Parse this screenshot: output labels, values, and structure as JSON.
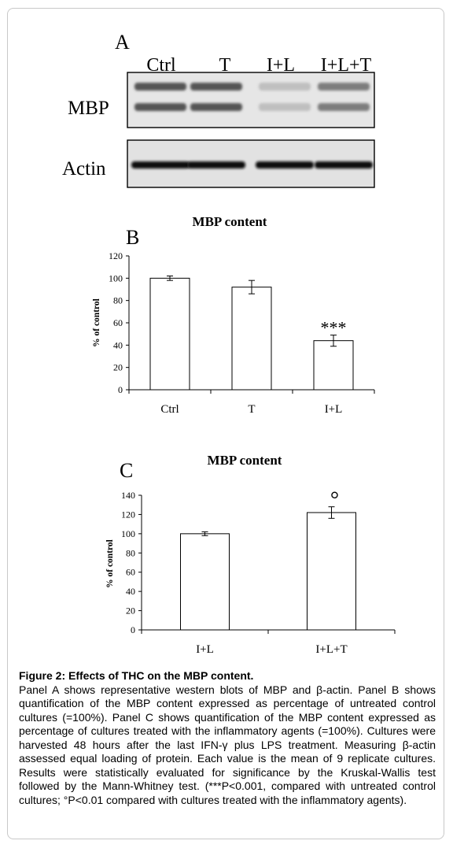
{
  "panel_a": {
    "letter": "A",
    "lanes": [
      "Ctrl",
      "T",
      "I+L",
      "I+L+T"
    ],
    "rows": [
      {
        "label": "MBP",
        "bands": 2,
        "intensity": [
          0.75,
          0.75,
          0.22,
          0.55
        ]
      },
      {
        "label": "Actin",
        "bands": 1,
        "intensity": [
          0.95,
          0.95,
          0.95,
          0.95
        ]
      }
    ]
  },
  "chart_data": [
    {
      "panel": "B",
      "type": "bar",
      "title": "MBP content",
      "categories": [
        "Ctrl",
        "T",
        "I+L"
      ],
      "values": [
        100,
        92,
        44
      ],
      "errors": [
        2,
        6,
        5
      ],
      "annotations": [
        "",
        "",
        "***"
      ],
      "xlabel": "",
      "ylabel": "% of control",
      "ylim": [
        0,
        120
      ],
      "yticks": [
        "0",
        "20",
        "40",
        "60",
        "80",
        "100",
        "120"
      ],
      "grid": false,
      "bar_color": "#ffffff"
    },
    {
      "panel": "C",
      "type": "bar",
      "title": "MBP content",
      "categories": [
        "I+L",
        "I+L+T"
      ],
      "values": [
        100,
        122
      ],
      "errors": [
        2,
        6
      ],
      "annotations": [
        "",
        "°"
      ],
      "xlabel": "",
      "ylabel": "% of control",
      "ylim": [
        0,
        140
      ],
      "yticks": [
        "0",
        "20",
        "40",
        "60",
        "80",
        "100",
        "120",
        "140"
      ],
      "grid": false,
      "bar_color": "#ffffff"
    }
  ],
  "caption": {
    "title": "Figure 2: Effects of THC on the MBP content.",
    "body": "Panel A shows representative western blots of MBP and β-actin. Panel B shows quantification of the MBP content expressed as percentage of untreated control cultures (=100%). Panel C shows quantification of the MBP content expressed as percentage of cultures treated with the inflammatory agents (=100%). Cultures were harvested 48 hours after the last IFN-γ plus LPS treatment. Measuring β-actin assessed equal loading of protein. Each value is the mean of 9 replicate cultures. Results were statistically evaluated for significance by the Kruskal-Wallis test followed by the Mann-Whitney test. (***P<0.001, compared with untreated control cultures; °P<0.01 compared with cultures treated with the inflammatory agents)."
  }
}
